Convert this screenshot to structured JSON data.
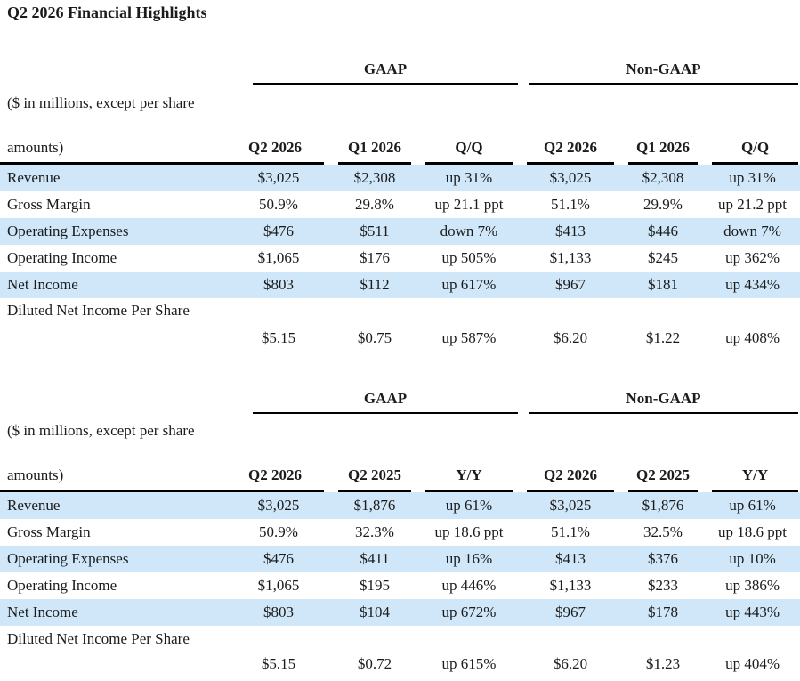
{
  "title": "Q2 2026 Financial Highlights",
  "units_note_line1": "($ in millions, except per share",
  "units_note_line2": "amounts)",
  "colors": {
    "stripe": "#cfe7f8",
    "text": "#1b1b1b",
    "line": "#000000"
  },
  "tables": [
    {
      "id": "quarter-over-quarter",
      "groups": [
        "GAAP",
        "Non-GAAP"
      ],
      "columns": [
        "Q2 2026",
        "Q1 2026",
        "Q/Q",
        "Q2 2026",
        "Q1 2026",
        "Q/Q"
      ],
      "rows": [
        {
          "label": "Revenue",
          "values": [
            "$3,025",
            "$2,308",
            "up 31%",
            "$3,025",
            "$2,308",
            "up 31%"
          ]
        },
        {
          "label": "Gross Margin",
          "values": [
            "50.9%",
            "29.8%",
            "up 21.1 ppt",
            "51.1%",
            "29.9%",
            "up 21.2 ppt"
          ]
        },
        {
          "label": "Operating Expenses",
          "values": [
            "$476",
            "$511",
            "down 7%",
            "$413",
            "$446",
            "down 7%"
          ]
        },
        {
          "label": "Operating Income",
          "values": [
            "$1,065",
            "$176",
            "up 505%",
            "$1,133",
            "$245",
            "up 362%"
          ]
        },
        {
          "label": "Net Income",
          "values": [
            "$803",
            "$112",
            "up 617%",
            "$967",
            "$181",
            "up 434%"
          ]
        },
        {
          "label": "Diluted Net Income Per Share",
          "values": [
            "$5.15",
            "$0.75",
            "up 587%",
            "$6.20",
            "$1.22",
            "up 408%"
          ]
        }
      ]
    },
    {
      "id": "year-over-year",
      "groups": [
        "GAAP",
        "Non-GAAP"
      ],
      "columns": [
        "Q2 2026",
        "Q2 2025",
        "Y/Y",
        "Q2 2026",
        "Q2 2025",
        "Y/Y"
      ],
      "rows": [
        {
          "label": "Revenue",
          "values": [
            "$3,025",
            "$1,876",
            "up 61%",
            "$3,025",
            "$1,876",
            "up 61%"
          ]
        },
        {
          "label": "Gross Margin",
          "values": [
            "50.9%",
            "32.3%",
            "up 18.6 ppt",
            "51.1%",
            "32.5%",
            "up 18.6 ppt"
          ]
        },
        {
          "label": "Operating Expenses",
          "values": [
            "$476",
            "$411",
            "up 16%",
            "$413",
            "$376",
            "up 10%"
          ]
        },
        {
          "label": "Operating Income",
          "values": [
            "$1,065",
            "$195",
            "up 446%",
            "$1,133",
            "$233",
            "up 386%"
          ]
        },
        {
          "label": "Net Income",
          "values": [
            "$803",
            "$104",
            "up 672%",
            "$967",
            "$178",
            "up 443%"
          ]
        },
        {
          "label": "Diluted Net Income Per Share",
          "values": [
            "$5.15",
            "$0.72",
            "up 615%",
            "$6.20",
            "$1.23",
            "up 404%"
          ]
        }
      ]
    }
  ]
}
